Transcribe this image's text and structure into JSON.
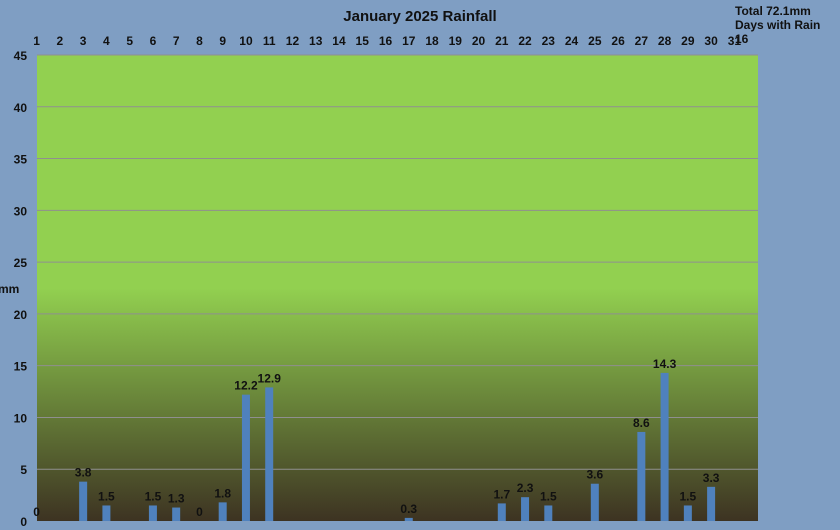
{
  "summary": {
    "total": "Total 72.1mm",
    "days": "Days with Rain 16"
  },
  "chart_data": {
    "type": "bar",
    "title": "January 2025 Rainfall",
    "xlabel": "",
    "ylabel": "mm",
    "ylim": [
      0,
      45
    ],
    "yticks": [
      0,
      5,
      10,
      15,
      20,
      25,
      30,
      35,
      40,
      45
    ],
    "grid": true,
    "categories": [
      "1",
      "2",
      "3",
      "4",
      "5",
      "6",
      "7",
      "8",
      "9",
      "10",
      "11",
      "12",
      "13",
      "14",
      "15",
      "16",
      "17",
      "18",
      "19",
      "20",
      "21",
      "22",
      "23",
      "24",
      "25",
      "26",
      "27",
      "28",
      "29",
      "30",
      "31"
    ],
    "values": [
      0,
      null,
      3.8,
      1.5,
      null,
      1.5,
      1.3,
      0,
      1.8,
      12.2,
      12.9,
      null,
      null,
      null,
      null,
      null,
      0.3,
      null,
      null,
      null,
      1.7,
      2.3,
      1.5,
      null,
      3.6,
      null,
      8.6,
      14.3,
      1.5,
      3.3,
      null
    ],
    "data_labels": [
      "0",
      "",
      "3.8",
      "1.5",
      "",
      "1.5",
      "1.3",
      "0",
      "1.8",
      "12.2",
      "12.9",
      "",
      "",
      "",
      "",
      "",
      "0.3",
      "",
      "",
      "",
      "1.7",
      "2.3",
      "1.5",
      "",
      "3.6",
      "",
      "8.6",
      "14.3",
      "1.5",
      "3.3",
      ""
    ],
    "colors": {
      "bar": "#4f81bd",
      "plot_top": "#92d050",
      "plot_bottom": "#3d3322",
      "background": "#7f9ec3",
      "grid": "#8f8f8f"
    }
  }
}
